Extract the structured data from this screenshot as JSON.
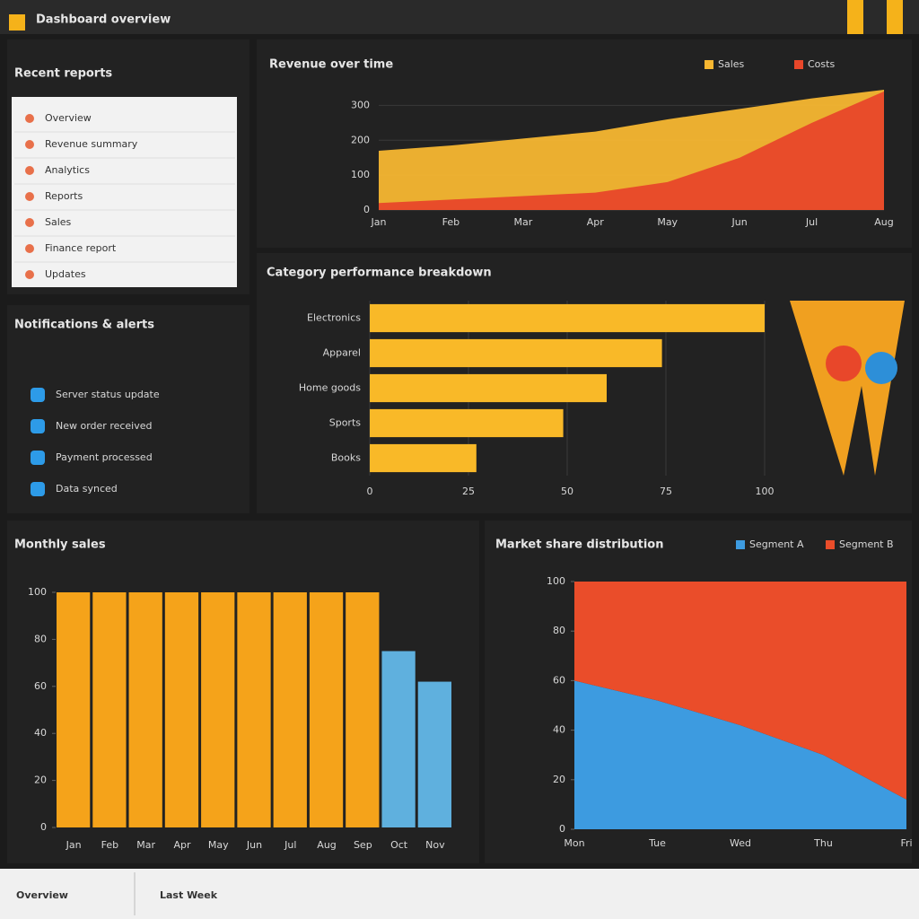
{
  "header": {
    "title": "Dashboard overview"
  },
  "sidebar": {
    "title": "Recent reports",
    "items": [
      "Overview",
      "Revenue summary",
      "Analytics",
      "Reports",
      "Sales",
      "Finance report",
      "Updates"
    ]
  },
  "alerts": {
    "title": "Notifications & alerts",
    "items": [
      "Server status update",
      "New order received",
      "Payment processed",
      "Data synced"
    ]
  },
  "footer": {
    "tabs": [
      "Overview",
      "Last Week"
    ]
  },
  "chart_data": [
    {
      "type": "area",
      "title": "Revenue over time",
      "categories": [
        "Jan",
        "Feb",
        "Mar",
        "Apr",
        "May",
        "Jun",
        "Jul",
        "Aug"
      ],
      "series": [
        {
          "name": "Sales",
          "color": "#f7b731",
          "values": [
            170,
            185,
            205,
            225,
            260,
            290,
            320,
            345
          ]
        },
        {
          "name": "Costs",
          "color": "#e8472a",
          "values": [
            20,
            30,
            40,
            50,
            80,
            150,
            250,
            340
          ]
        }
      ],
      "ylim": [
        0,
        350
      ],
      "yticks": [
        0,
        100,
        200,
        300
      ],
      "grid": true
    },
    {
      "type": "hbar",
      "title": "Category performance breakdown",
      "categories": [
        "Electronics",
        "Apparel",
        "Home goods",
        "Sports",
        "Books"
      ],
      "values": [
        100,
        74,
        60,
        49,
        27
      ],
      "color": "#f9b928",
      "xlim": [
        0,
        100
      ],
      "xticks": [
        0,
        25,
        50,
        75,
        100
      ],
      "grid": true
    },
    {
      "type": "bar",
      "title": "Monthly sales",
      "categories": [
        "Jan",
        "Feb",
        "Mar",
        "Apr",
        "May",
        "Jun",
        "Jul",
        "Aug",
        "Sep",
        "Oct",
        "Nov"
      ],
      "values": [
        100,
        100,
        100,
        100,
        100,
        100,
        100,
        100,
        100,
        75,
        62
      ],
      "colors": [
        "#f5a31a",
        "#f5a31a",
        "#f5a31a",
        "#f5a31a",
        "#f5a31a",
        "#f5a31a",
        "#f5a31a",
        "#f5a31a",
        "#f5a31a",
        "#5fb0de",
        "#5fb0de"
      ],
      "ylim": [
        0,
        100
      ],
      "yticks": [
        0,
        20,
        40,
        60,
        80,
        100
      ]
    },
    {
      "type": "stacked_area",
      "title": "Market share distribution",
      "categories": [
        "Mon",
        "Tue",
        "Wed",
        "Thu",
        "Fri"
      ],
      "series": [
        {
          "name": "Segment A",
          "color": "#3d9be0",
          "values": [
            60,
            52,
            42,
            30,
            12
          ]
        },
        {
          "name": "Segment B",
          "color": "#ea4d2a",
          "values": [
            40,
            48,
            58,
            70,
            88
          ]
        }
      ],
      "ylim": [
        0,
        100
      ],
      "yticks": [
        0,
        20,
        40,
        60,
        80,
        100
      ]
    }
  ]
}
